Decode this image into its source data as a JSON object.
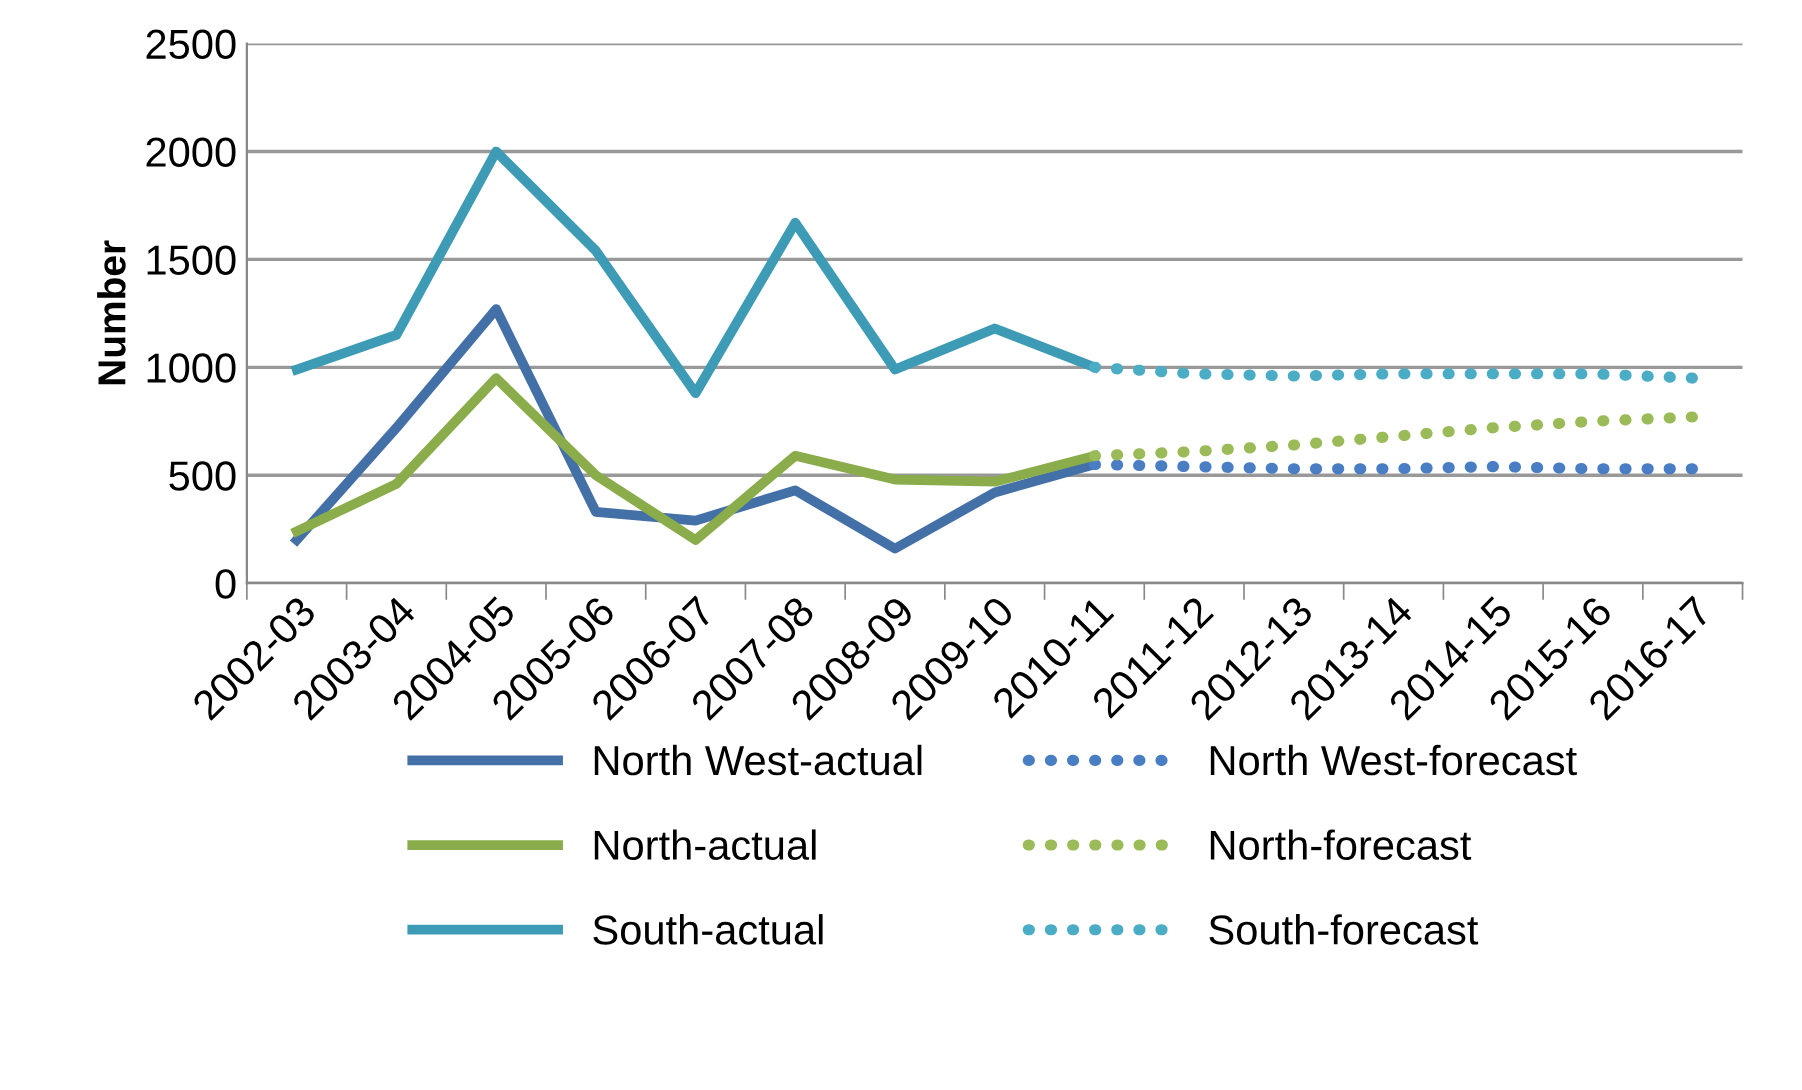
{
  "chart_data": {
    "type": "line",
    "ylabel": "Number",
    "categories": [
      "2002-03",
      "2003-04",
      "2004-05",
      "2005-06",
      "2006-07",
      "2007-08",
      "2008-09",
      "2009-10",
      "2010-11",
      "2011-12",
      "2012-13",
      "2013-14",
      "2014-15",
      "2015-16",
      "2016-17"
    ],
    "series": [
      {
        "name": "North West-actual",
        "color": "#4470a8",
        "line_style": "solid",
        "values": [
          200,
          720,
          1270,
          330,
          290,
          430,
          160,
          420,
          550,
          null,
          null,
          null,
          null,
          null,
          null
        ]
      },
      {
        "name": "North West-forecast",
        "color": "#4a7ec4",
        "line_style": "dotted",
        "values": [
          null,
          null,
          null,
          null,
          null,
          null,
          null,
          null,
          550,
          540,
          530,
          530,
          540,
          530,
          530
        ]
      },
      {
        "name": "North-actual",
        "color": "#8aac4a",
        "line_style": "solid",
        "values": [
          240,
          460,
          950,
          500,
          200,
          590,
          480,
          470,
          590,
          null,
          null,
          null,
          null,
          null,
          null
        ]
      },
      {
        "name": "North-forecast",
        "color": "#9bbb59",
        "line_style": "dotted",
        "values": [
          null,
          null,
          null,
          null,
          null,
          null,
          null,
          null,
          590,
          610,
          640,
          680,
          720,
          750,
          770
        ]
      },
      {
        "name": "South-actual",
        "color": "#3d9bb5",
        "line_style": "solid",
        "values": [
          990,
          1150,
          2000,
          1540,
          880,
          1670,
          990,
          1180,
          1000,
          null,
          null,
          null,
          null,
          null,
          null
        ]
      },
      {
        "name": "South-forecast",
        "color": "#4bacc6",
        "line_style": "dotted",
        "values": [
          null,
          null,
          null,
          null,
          null,
          null,
          null,
          null,
          1000,
          970,
          960,
          970,
          970,
          970,
          950
        ]
      }
    ],
    "ylim": [
      0,
      2500
    ],
    "yticks": [
      0,
      500,
      1000,
      1500,
      2000,
      2500
    ],
    "grid": "y",
    "legend": "bottom"
  }
}
